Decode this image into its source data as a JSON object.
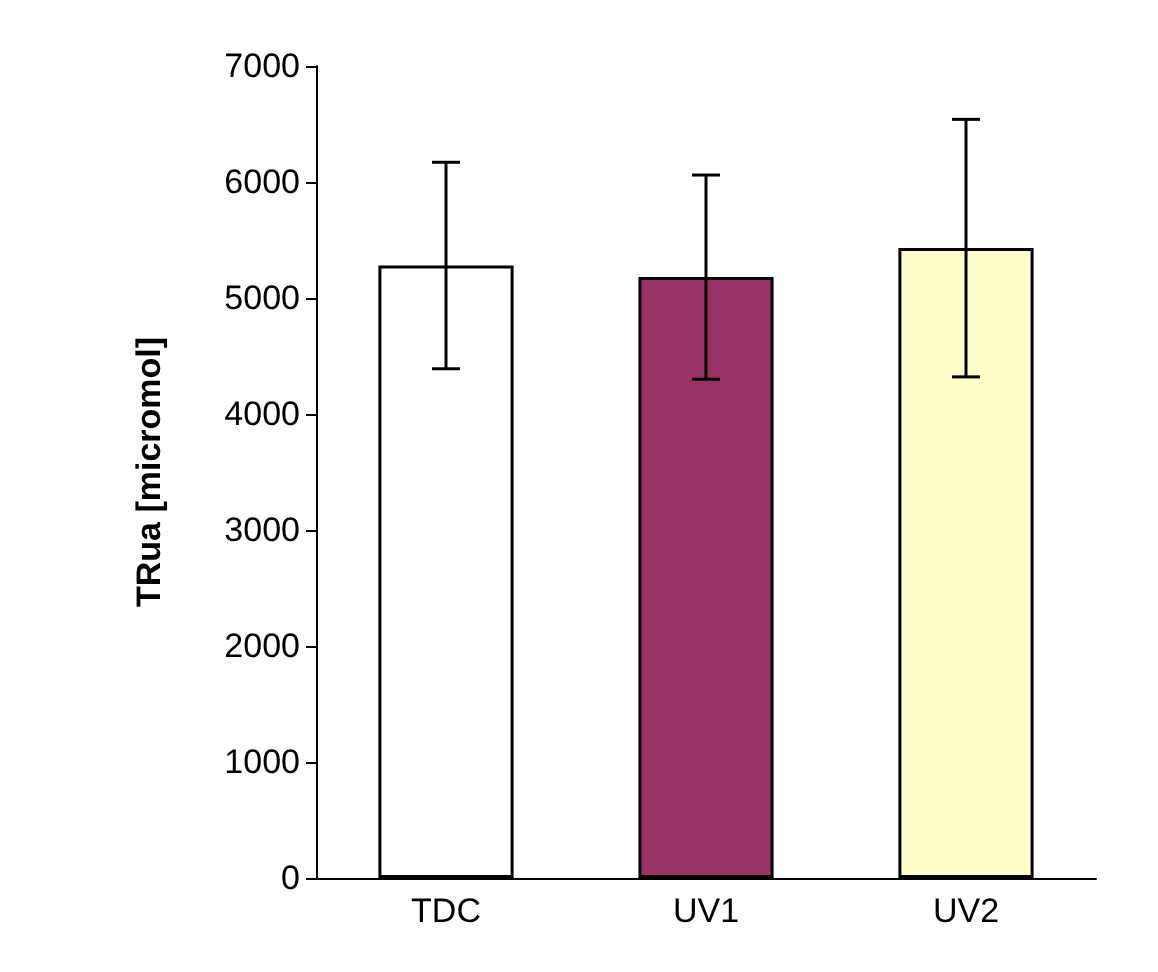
{
  "chart_data": {
    "type": "bar",
    "ylabel": "TRua [micromol]",
    "categories": [
      "TDC",
      "UV1",
      "UV2"
    ],
    "values": [
      5280,
      5180,
      5430
    ],
    "colors": [
      "#ffffff",
      "#993366",
      "#ffffcc"
    ],
    "errors": [
      890,
      880,
      1110
    ],
    "ylim": [
      0,
      7000
    ],
    "yticks": [
      0,
      1000,
      2000,
      3000,
      4000,
      5000,
      6000,
      7000
    ],
    "grid": false
  }
}
